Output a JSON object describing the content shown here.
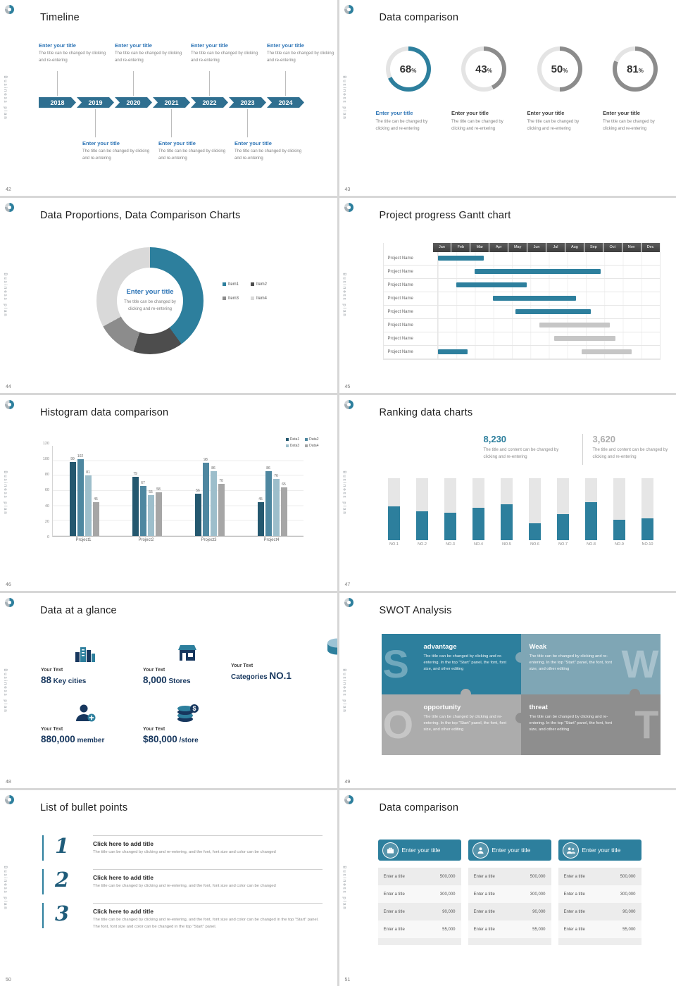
{
  "common": {
    "brand_vertical": "Business plan",
    "accent_color": "#2D7F9D"
  },
  "slides": {
    "timeline": {
      "number": "42",
      "title": "Timeline",
      "entry_title": "Enter your title",
      "entry_body": "The title can be changed by clicking and re-entering",
      "years": [
        "2018",
        "2019",
        "2020",
        "2021",
        "2022",
        "2023",
        "2024"
      ]
    },
    "donuts": {
      "number": "43",
      "title": "Data comparison",
      "entry_title": "Enter your title",
      "entry_body": "The title can be changed by clicking and re-entering"
    },
    "proportions": {
      "number": "44",
      "title": "Data Proportions, Data Comparison Charts",
      "center_title": "Enter your title",
      "center_body": "The title can be changed by clicking and re-entering"
    },
    "gantt": {
      "number": "45",
      "title": "Project progress Gantt chart"
    },
    "histogram": {
      "number": "46",
      "title": "Histogram data comparison"
    },
    "ranking": {
      "number": "47",
      "title": "Ranking data charts",
      "stat1": {
        "value": "8,230",
        "body": "The title and content can be changed by clicking and re-entering"
      },
      "stat2": {
        "value": "3,620",
        "body": "The title and content can be changed by clicking and re-entering"
      }
    },
    "glance": {
      "number": "48",
      "title": "Data at a glance",
      "label": "Your Text",
      "stats": [
        {
          "icon": "city-icon",
          "big": "88",
          "unit": "Key cities"
        },
        {
          "icon": "store-icon",
          "big": "8,000",
          "unit": "Stores"
        },
        {
          "icon": "categories-icon",
          "prefix": "Categories",
          "big": "NO.1"
        },
        {
          "icon": "member-icon",
          "big": "880,000",
          "unit": "member"
        },
        {
          "icon": "money-icon",
          "big": "$80,000",
          "unit": "/store"
        }
      ]
    },
    "swot": {
      "number": "49",
      "title": "SWOT Analysis",
      "body": "The title can be changed by clicking and re-entering. In the top \"Start\" panel, the font, font size, and other editing",
      "quads": [
        {
          "letter": "S",
          "heading": "advantage",
          "bg": "#2D7F9D"
        },
        {
          "letter": "W",
          "heading": "Weak",
          "bg": "#7FA6B5"
        },
        {
          "letter": "O",
          "heading": "opportunity",
          "bg": "#ACACAC"
        },
        {
          "letter": "T",
          "heading": "threat",
          "bg": "#8E8E8E"
        }
      ]
    },
    "bullets": {
      "number": "50",
      "title": "List of bullet points",
      "items": [
        {
          "num": "1",
          "heading": "Click here to add title",
          "body": "The title can be changed by clicking and re-entering, and the font, font size and color can be changed"
        },
        {
          "num": "2",
          "heading": "Click here to add title",
          "body": "The title can be changed by clicking and re-entering, and the font, font size and color can be changed"
        },
        {
          "num": "3",
          "heading": "Click here to add title",
          "body": "The title can be changed by clicking and re-entering, and the font, font size and color can be changed in the top \"Start\" panel. The font, font size and color can be changed in the top \"Start\" panel."
        }
      ]
    },
    "cards": {
      "number": "51",
      "title": "Data comparison",
      "row_label": "Enter a title",
      "cards": [
        {
          "icon": "briefcase-icon",
          "header": "Enter your title",
          "values": [
            "500,000",
            "300,000",
            "90,000",
            "55,000"
          ]
        },
        {
          "icon": "person-icon",
          "header": "Enter your title",
          "values": [
            "500,000",
            "300,000",
            "90,000",
            "55,000"
          ]
        },
        {
          "icon": "people-icon",
          "header": "Enter your title",
          "values": [
            "500,000",
            "300,000",
            "90,000",
            "55,000"
          ]
        }
      ]
    }
  },
  "chart_data": [
    {
      "id": "percent-rings",
      "slide": "43",
      "type": "pie",
      "track_color": "#E4E4E4",
      "items": [
        {
          "value": 68,
          "color": "#2D7F9D",
          "title_color": "#2E75B6"
        },
        {
          "value": 43,
          "color": "#8C8C8C",
          "title_color": "#404040"
        },
        {
          "value": 50,
          "color": "#8C8C8C",
          "title_color": "#404040"
        },
        {
          "value": 81,
          "color": "#8C8C8C",
          "title_color": "#404040"
        }
      ]
    },
    {
      "id": "proportion-donut",
      "slide": "44",
      "type": "pie",
      "series": [
        {
          "name": "Item1",
          "value": 40,
          "color": "#2D7F9D"
        },
        {
          "name": "Item2",
          "value": 15,
          "color": "#4D4D4D"
        },
        {
          "name": "Item3",
          "value": 12,
          "color": "#8C8C8C"
        },
        {
          "name": "Item4",
          "value": 33,
          "color": "#D9D9D9"
        }
      ]
    },
    {
      "id": "gantt",
      "slide": "45",
      "type": "gantt",
      "months": [
        "Jan",
        "Feb",
        "Mar",
        "Apr",
        "May",
        "Jun",
        "Jul",
        "Aug",
        "Sep",
        "Oct",
        "Nov",
        "Dec"
      ],
      "rows": [
        {
          "label": "Project Name",
          "bars": [
            {
              "start": 0,
              "end": 2.5,
              "color": "#2D7F9D"
            }
          ]
        },
        {
          "label": "Project Name",
          "bars": [
            {
              "start": 2,
              "end": 8.8,
              "color": "#2D7F9D"
            }
          ]
        },
        {
          "label": "Project Name",
          "bars": [
            {
              "start": 1,
              "end": 4.8,
              "color": "#2D7F9D"
            }
          ]
        },
        {
          "label": "Project Name",
          "bars": [
            {
              "start": 3,
              "end": 7.5,
              "color": "#2D7F9D"
            }
          ]
        },
        {
          "label": "Project Name",
          "bars": [
            {
              "start": 4.2,
              "end": 8.3,
              "color": "#2D7F9D"
            }
          ]
        },
        {
          "label": "Project Name",
          "bars": [
            {
              "start": 5.5,
              "end": 9.3,
              "color": "#C6C6C6"
            }
          ]
        },
        {
          "label": "Project Name",
          "bars": [
            {
              "start": 6.3,
              "end": 9.6,
              "color": "#C6C6C6"
            }
          ]
        },
        {
          "label": "Project Name",
          "bars": [
            {
              "start": 0,
              "end": 1.6,
              "color": "#2D7F9D"
            },
            {
              "start": 7.8,
              "end": 10.5,
              "color": "#C6C6C6"
            }
          ]
        }
      ]
    },
    {
      "id": "histogram",
      "slide": "46",
      "type": "bar",
      "categories": [
        "Project1",
        "Project2",
        "Project3",
        "Project4"
      ],
      "series": [
        {
          "name": "Data1",
          "color": "#24586F",
          "values": [
            99,
            79,
            56,
            45
          ]
        },
        {
          "name": "Data2",
          "color": "#4E87A0",
          "values": [
            102,
            67,
            98,
            86
          ]
        },
        {
          "name": "Data3",
          "color": "#9DBECB",
          "values": [
            81,
            55,
            86,
            76
          ]
        },
        {
          "name": "Data4",
          "color": "#A6A6A6",
          "values": [
            45,
            58,
            70,
            65
          ]
        }
      ],
      "ylim": [
        0,
        120
      ],
      "yticks": [
        0,
        20,
        40,
        60,
        80,
        100,
        120
      ]
    },
    {
      "id": "ranking",
      "slide": "47",
      "type": "bar",
      "categories": [
        "NO.1",
        "NO.2",
        "NO.3",
        "NO.4",
        "NO.5",
        "NO.6",
        "NO.7",
        "NO.8",
        "NO.9",
        "NO.10"
      ],
      "values": [
        55,
        47,
        45,
        52,
        58,
        28,
        42,
        62,
        33,
        35
      ],
      "ymax": 100,
      "bar_color": "#2D7F9D",
      "track_color": "#E6E6E6"
    }
  ]
}
